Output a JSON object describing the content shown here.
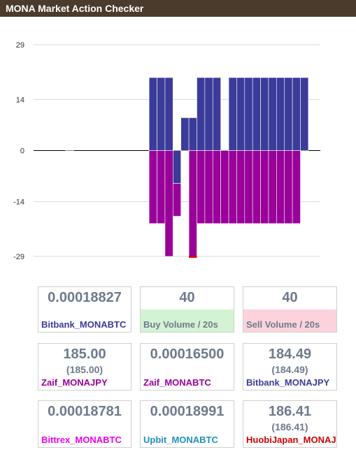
{
  "title": "MONA Market Action Checker",
  "chart_data": {
    "type": "bar",
    "yticks": [
      29,
      14,
      0,
      -14,
      -29
    ],
    "ylim": [
      -29,
      29
    ],
    "grid": true,
    "bars": [
      {
        "x": 15,
        "buy": 20,
        "sell": -20
      },
      {
        "x": 16,
        "buy": 20,
        "sell": -20
      },
      {
        "x": 17,
        "buy": 20,
        "sell": -29
      },
      {
        "x": 18,
        "buy": -9,
        "sell": -18
      },
      {
        "x": 19,
        "buy": 9,
        "sell": 0
      },
      {
        "x": 20,
        "buy": 9,
        "sell": -29
      },
      {
        "x": 21,
        "buy": 20,
        "sell": -20
      },
      {
        "x": 22,
        "buy": 20,
        "sell": -20
      },
      {
        "x": 23,
        "buy": 20,
        "sell": -20
      },
      {
        "x": 24,
        "buy": 0,
        "sell": -20
      },
      {
        "x": 25,
        "buy": 20,
        "sell": -20
      },
      {
        "x": 26,
        "buy": 20,
        "sell": -20
      },
      {
        "x": 27,
        "buy": 20,
        "sell": -20
      },
      {
        "x": 28,
        "buy": 20,
        "sell": -20
      },
      {
        "x": 29,
        "buy": 20,
        "sell": -20
      },
      {
        "x": 30,
        "buy": 20,
        "sell": -20
      },
      {
        "x": 31,
        "buy": 20,
        "sell": -20
      },
      {
        "x": 32,
        "buy": 20,
        "sell": -20
      },
      {
        "x": 33,
        "buy": 20,
        "sell": -20
      },
      {
        "x": 34,
        "buy": 20,
        "sell": 0
      }
    ],
    "x_count": 36,
    "colors": {
      "buy": "#3b3b9a",
      "sell": "#990099",
      "marker": "#dd0000"
    }
  },
  "cards": [
    {
      "value": "0.00018827",
      "sub": "",
      "label": "Bitbank_MONABTC",
      "label_color": "#3b3b9a"
    },
    {
      "value": "40",
      "sub": "",
      "label": "Buy Volume / 20s",
      "label_color": "#6e7b8c"
    },
    {
      "value": "40",
      "sub": "",
      "label": "Sell Volume / 20s",
      "label_color": "#6e7b8c"
    },
    {
      "value": "185.00",
      "sub": "(185.00)",
      "label": "Zaif_MONAJPY",
      "label_color": "#990099"
    },
    {
      "value": "0.00016500",
      "sub": "",
      "label": "Zaif_MONABTC",
      "label_color": "#990099"
    },
    {
      "value": "184.49",
      "sub": "(184.49)",
      "label": "Bitbank_MONAJPY",
      "label_color": "#3b3b9a"
    },
    {
      "value": "0.00018781",
      "sub": "",
      "label": "Bittrex_MONABTC",
      "label_color": "#ee00ee"
    },
    {
      "value": "0.00018991",
      "sub": "",
      "label": "Upbit_MONABTC",
      "label_color": "#1f8fc4"
    },
    {
      "value": "186.41",
      "sub": "(186.41)",
      "label": "HuobiJapan_MONAJPY",
      "label_color": "#cc0000"
    }
  ]
}
